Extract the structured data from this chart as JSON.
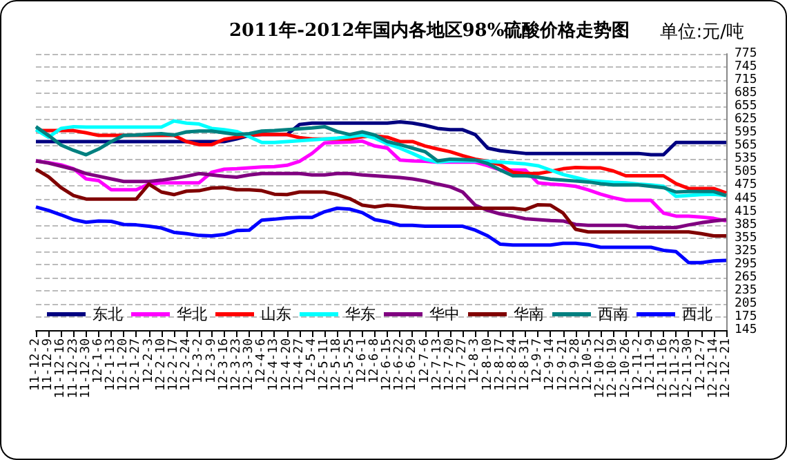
{
  "chart_data": {
    "type": "line",
    "title": "2011年-2012年国内各地区98%硫酸价格走势图",
    "annotations": [
      "单位:元/吨"
    ],
    "categories": [
      "11-12-2",
      "11-12-9",
      "11-12-16",
      "11-12-23",
      "11-12-30",
      "12-1-6",
      "12-1-13",
      "12-1-20",
      "12-1-27",
      "12-2-3",
      "12-2-10",
      "12-2-17",
      "12-2-24",
      "12-3-2",
      "12-3-9",
      "12-3-16",
      "12-3-23",
      "12-3-30",
      "12-4-6",
      "12-4-13",
      "12-4-20",
      "12-4-27",
      "12-5-4",
      "12-5-11",
      "12-5-18",
      "12-5-25",
      "12-6-1",
      "12-6-8",
      "12-6-15",
      "12-6-22",
      "12-6-29",
      "12-7-6",
      "12-7-13",
      "12-7-20",
      "12-7-27",
      "12-8-3",
      "12-8-10",
      "12-8-17",
      "12-8-24",
      "12-8-31",
      "12-9-7",
      "12-9-14",
      "12-9-21",
      "12-9-28",
      "12-10-5",
      "12-10-12",
      "12-10-19",
      "12-10-26",
      "12-11-2",
      "12-11-9",
      "12-11-16",
      "12-11-23",
      "12-11-30",
      "12-12-7",
      "12-12-14",
      "12-12-21"
    ],
    "series": [
      {
        "name": "东北",
        "color": "#000080",
        "values": [
          575,
          575,
          575,
          575,
          575,
          575,
          575,
          575,
          575,
          575,
          575,
          575,
          575,
          575,
          575,
          575,
          581,
          589,
          591,
          591,
          591,
          614,
          617,
          617,
          617,
          617,
          617,
          617,
          617,
          620,
          617,
          612,
          605,
          602,
          602,
          591,
          560,
          554,
          551,
          548,
          548,
          548,
          548,
          548,
          548,
          548,
          548,
          548,
          548,
          545,
          545,
          573,
          573,
          573,
          573,
          573
        ]
      },
      {
        "name": "华北",
        "color": "#ff00ff",
        "values": [
          531,
          527,
          522,
          513,
          490,
          486,
          465,
          465,
          465,
          478,
          481,
          481,
          481,
          481,
          505,
          512,
          513,
          515,
          517,
          518,
          521,
          530,
          548,
          572,
          573,
          574,
          576,
          565,
          560,
          533,
          531,
          530,
          528,
          528,
          528,
          528,
          520,
          510,
          510,
          510,
          481,
          478,
          476,
          473,
          465,
          455,
          447,
          441,
          441,
          441,
          412,
          405,
          405,
          403,
          400,
          394
        ]
      },
      {
        "name": "山东",
        "color": "#ff0000",
        "values": [
          600,
          600,
          600,
          600,
          595,
          589,
          589,
          589,
          589,
          589,
          589,
          589,
          575,
          568,
          568,
          580,
          585,
          590,
          591,
          591,
          591,
          584,
          581,
          581,
          581,
          581,
          586,
          588,
          585,
          575,
          575,
          565,
          558,
          552,
          543,
          535,
          530,
          522,
          505,
          502,
          502,
          507,
          513,
          516,
          515,
          515,
          508,
          497,
          497,
          497,
          497,
          479,
          468,
          468,
          468,
          458
        ]
      },
      {
        "name": "华东",
        "color": "#00ffff",
        "values": [
          602,
          585,
          605,
          609,
          608,
          608,
          608,
          608,
          608,
          608,
          608,
          622,
          617,
          615,
          605,
          602,
          598,
          586,
          573,
          573,
          575,
          577,
          579,
          581,
          583,
          586,
          590,
          583,
          570,
          560,
          548,
          535,
          528,
          531,
          531,
          531,
          530,
          528,
          526,
          524,
          520,
          510,
          500,
          493,
          486,
          484,
          482,
          481,
          478,
          476,
          473,
          450,
          452,
          454,
          455,
          452
        ]
      },
      {
        "name": "华中",
        "color": "#800080",
        "values": [
          531,
          526,
          519,
          512,
          502,
          496,
          490,
          484,
          484,
          484,
          487,
          491,
          496,
          502,
          499,
          496,
          494,
          499,
          502,
          502,
          502,
          502,
          499,
          499,
          502,
          502,
          499,
          497,
          495,
          493,
          490,
          485,
          478,
          472,
          460,
          430,
          418,
          410,
          405,
          399,
          397,
          395,
          394,
          386,
          384,
          384,
          384,
          384,
          379,
          379,
          379,
          379,
          385,
          390,
          394,
          397
        ]
      },
      {
        "name": "华南",
        "color": "#800000",
        "values": [
          512,
          495,
          470,
          452,
          444,
          444,
          444,
          444,
          444,
          478,
          460,
          454,
          462,
          463,
          469,
          470,
          465,
          465,
          463,
          455,
          454,
          460,
          460,
          460,
          454,
          445,
          430,
          426,
          430,
          428,
          425,
          423,
          423,
          423,
          423,
          423,
          423,
          423,
          423,
          420,
          431,
          430,
          412,
          375,
          369,
          369,
          369,
          369,
          369,
          369,
          369,
          369,
          369,
          365,
          360,
          360
        ]
      },
      {
        "name": "西南",
        "color": "#008080",
        "values": [
          609,
          589,
          567,
          555,
          545,
          558,
          575,
          589,
          590,
          592,
          593,
          590,
          597,
          599,
          599,
          595,
          591,
          593,
          599,
          600,
          602,
          604,
          606,
          609,
          598,
          591,
          597,
          590,
          575,
          568,
          560,
          552,
          531,
          535,
          534,
          533,
          525,
          510,
          497,
          497,
          494,
          489,
          487,
          485,
          483,
          479,
          476,
          476,
          476,
          473,
          470,
          460,
          461,
          461,
          461,
          452
        ]
      },
      {
        "name": "西北",
        "color": "#0000ff",
        "values": [
          426,
          418,
          408,
          397,
          391,
          394,
          393,
          386,
          385,
          382,
          378,
          368,
          365,
          361,
          360,
          363,
          372,
          373,
          396,
          398,
          401,
          402,
          402,
          415,
          423,
          421,
          413,
          397,
          392,
          384,
          384,
          382,
          382,
          382,
          382,
          373,
          360,
          341,
          339,
          339,
          339,
          339,
          343,
          343,
          340,
          334,
          334,
          334,
          334,
          334,
          327,
          324,
          299,
          299,
          303,
          304
        ]
      }
    ],
    "ylim": [
      145,
      775
    ],
    "yticks": [
      145,
      175,
      205,
      235,
      265,
      295,
      325,
      355,
      385,
      415,
      445,
      475,
      505,
      535,
      565,
      595,
      625,
      655,
      685,
      715,
      745,
      775
    ],
    "grid": "y",
    "legend": "bottom",
    "marker": "none",
    "line_style": "solid"
  }
}
